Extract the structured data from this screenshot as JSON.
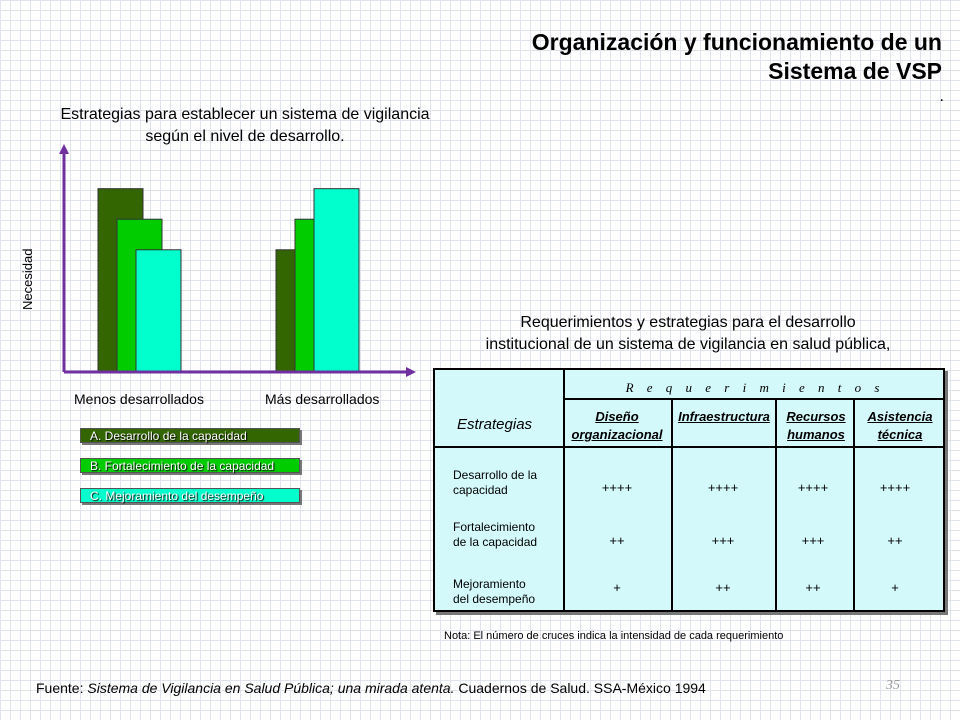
{
  "title": {
    "line1": "Organización y funcionamiento de un",
    "line2": "Sistema de VSP"
  },
  "title_dot": ".",
  "left_caption": {
    "line1": "Estrategias para establecer un sistema de vigilancia",
    "line2": "según el nivel de desarrollo."
  },
  "right_caption": {
    "line1": "Requerimientos y estrategias para el desarrollo",
    "line2": "institucional de un sistema de vigilancia en salud pública,"
  },
  "chart_data": {
    "type": "bar",
    "ylabel": "Necesidad",
    "xlabel": "",
    "categories": [
      "Menos desarrollados",
      "Más desarrollados"
    ],
    "series": [
      {
        "name": "A. Desarrollo de la capacidad",
        "color": "#336600",
        "values": [
          3,
          2
        ]
      },
      {
        "name": "B. Fortalecimiento de la capacidad",
        "color": "#00cc00",
        "values": [
          2.5,
          2.5
        ]
      },
      {
        "name": "C. Mejoramiento del desempeño",
        "color": "#00ffcc",
        "values": [
          2,
          3
        ]
      }
    ],
    "ylim": [
      0,
      3.6
    ],
    "grid": false,
    "axis_color": "#7030a0"
  },
  "legend": [
    {
      "label": "A. Desarrollo de la capacidad",
      "color": "#336600"
    },
    {
      "label": "B. Fortalecimiento de la capacidad",
      "color": "#00cc00"
    },
    {
      "label": "C. Mejoramiento del desempeño",
      "color": "#00ffcc"
    }
  ],
  "table": {
    "header": "R e q u e r i m i e n t o s",
    "strategies_label": "Estrategias",
    "columns": [
      {
        "l1": "Diseño",
        "l2": "organizacional"
      },
      {
        "l1": "Infraestructura",
        "l2": ""
      },
      {
        "l1": "Recursos",
        "l2": "humanos"
      },
      {
        "l1": "Asistencia",
        "l2": "técnica"
      }
    ],
    "rows": [
      {
        "l1": "Desarrollo de la",
        "l2": "capacidad",
        "values": [
          "++++",
          "++++",
          "++++",
          "++++"
        ]
      },
      {
        "l1": "Fortalecimiento",
        "l2": "de la capacidad",
        "values": [
          "++",
          "+++",
          "+++",
          "++"
        ]
      },
      {
        "l1": "Mejoramiento",
        "l2": "del desempeño",
        "values": [
          "+",
          "++",
          "++",
          "+"
        ]
      }
    ]
  },
  "note": "Nota: El número de cruces indica la intensidad de cada requerimiento",
  "source": {
    "prefix": "Fuente: ",
    "italic": "Sistema de Vigilancia en Salud Pública; una mirada atenta.",
    "suffix": " Cuadernos de Salud. SSA-México 1994"
  },
  "page_number": "35"
}
